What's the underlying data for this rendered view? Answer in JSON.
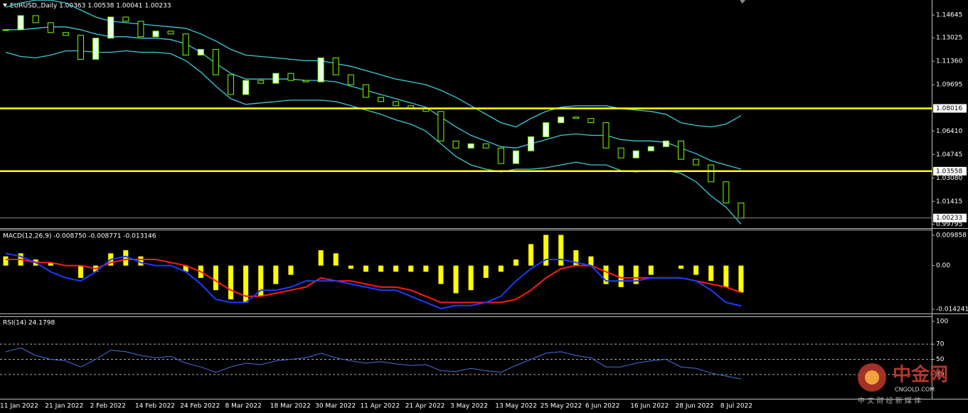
{
  "chart_data": [
    {
      "type": "candlestick",
      "title": "EURUSD,,Daily  1.00363 1.00538 1.00041 1.00233",
      "categories": [
        "11 Jan 2022",
        null,
        null,
        "21 Jan 2022",
        null,
        null,
        "2 Feb 2022",
        null,
        null,
        "14 Feb 2022",
        null,
        null,
        "24 Feb 2022",
        null,
        null,
        "8 Mar 2022",
        null,
        null,
        "18 Mar 2022",
        null,
        null,
        "30 Mar 2022",
        null,
        null,
        "11 Apr 2022",
        null,
        null,
        "21 Apr 2022",
        null,
        null,
        "3 May 2022",
        null,
        null,
        "13 May 2022",
        null,
        null,
        "25 May 2022",
        null,
        null,
        "6 Jun 2022",
        null,
        null,
        "16 Jun 2022",
        null,
        null,
        "28 Jun 2022",
        null,
        null,
        "8 Jul 2022",
        null
      ],
      "close": [
        1.136,
        1.146,
        1.141,
        1.134,
        1.132,
        1.115,
        1.13,
        1.145,
        1.142,
        1.131,
        1.135,
        1.133,
        1.118,
        1.122,
        1.104,
        1.09,
        1.1,
        1.098,
        1.105,
        1.1,
        1.099,
        1.116,
        1.104,
        1.097,
        1.088,
        1.085,
        1.082,
        1.08,
        1.078,
        1.057,
        1.052,
        1.055,
        1.052,
        1.041,
        1.05,
        1.06,
        1.07,
        1.074,
        1.073,
        1.07,
        1.052,
        1.045,
        1.05,
        1.053,
        1.057,
        1.044,
        1.04,
        1.028,
        1.013,
        1.00233
      ],
      "bands": {
        "upper": [
          1.152,
          1.155,
          1.157,
          1.157,
          1.155,
          1.15,
          1.145,
          1.142,
          1.141,
          1.14,
          1.139,
          1.138,
          1.137,
          1.133,
          1.128,
          1.122,
          1.118,
          1.117,
          1.116,
          1.115,
          1.114,
          1.114,
          1.112,
          1.11,
          1.107,
          1.104,
          1.101,
          1.099,
          1.097,
          1.093,
          1.088,
          1.082,
          1.076,
          1.07,
          1.067,
          1.073,
          1.078,
          1.081,
          1.082,
          1.082,
          1.082,
          1.08,
          1.079,
          1.078,
          1.076,
          1.07,
          1.068,
          1.067,
          1.069,
          1.075
        ],
        "middle": [
          1.136,
          1.136,
          1.137,
          1.138,
          1.138,
          1.136,
          1.133,
          1.131,
          1.131,
          1.13,
          1.13,
          1.129,
          1.126,
          1.12,
          1.112,
          1.105,
          1.101,
          1.101,
          1.101,
          1.101,
          1.1,
          1.1,
          1.099,
          1.096,
          1.093,
          1.09,
          1.087,
          1.084,
          1.081,
          1.074,
          1.067,
          1.061,
          1.057,
          1.053,
          1.052,
          1.055,
          1.058,
          1.061,
          1.062,
          1.061,
          1.061,
          1.058,
          1.057,
          1.057,
          1.056,
          1.052,
          1.048,
          1.043,
          1.04,
          1.037
        ],
        "lower": [
          1.12,
          1.117,
          1.116,
          1.118,
          1.121,
          1.121,
          1.12,
          1.12,
          1.121,
          1.12,
          1.12,
          1.119,
          1.114,
          1.106,
          1.096,
          1.087,
          1.083,
          1.084,
          1.085,
          1.086,
          1.086,
          1.086,
          1.085,
          1.082,
          1.079,
          1.076,
          1.072,
          1.069,
          1.064,
          1.055,
          1.046,
          1.04,
          1.037,
          1.035,
          1.037,
          1.037,
          1.038,
          1.04,
          1.042,
          1.04,
          1.04,
          1.036,
          1.035,
          1.036,
          1.036,
          1.034,
          1.028,
          1.018,
          1.01,
          0.998
        ]
      },
      "band_color": "#3fc8d8",
      "candle_color": "#eaffea",
      "candle_edge": "#7cfc00",
      "levels": [
        1.08016,
        1.03558
      ],
      "level_color": "#ffff00",
      "ylim": [
        0.9951,
        1.1571
      ],
      "yticks": [
        1.14645,
        1.13025,
        {
          "value": 1.1136,
          "label": "1.11360"
        },
        1.09695,
        {
          "value": 1.0641,
          "label": "1.06410"
        },
        1.04745,
        {
          "value": 1.0308,
          "label": "1.03080"
        },
        1.01415,
        0.99795
      ]
    },
    {
      "type": "macd",
      "title": "MACD(12,26,9) -0.008750 -0.008771 -0.013146",
      "series": [
        {
          "color": "#ffff00",
          "values": [
            0.003,
            0.004,
            0.002,
            0.001,
            0.0,
            -0.004,
            -0.002,
            0.004,
            0.005,
            0.003,
            0.0,
            0.0,
            -0.002,
            -0.004,
            -0.008,
            -0.011,
            -0.012,
            -0.01,
            -0.006,
            -0.003,
            0.0,
            0.005,
            0.004,
            -0.001,
            -0.002,
            -0.002,
            -0.002,
            -0.002,
            -0.002,
            -0.006,
            -0.009,
            -0.008,
            -0.004,
            -0.002,
            0.002,
            0.007,
            0.01,
            0.01,
            0.005,
            0.003,
            -0.006,
            -0.007,
            -0.006,
            -0.003,
            0.0,
            -0.001,
            -0.003,
            -0.005,
            -0.007,
            -0.00875
          ]
        },
        {
          "color": "#ff1a1a",
          "values": [
            0.002,
            0.002,
            0.001,
            0.001,
            0.0,
            0.0,
            -0.001,
            0.001,
            0.002,
            0.002,
            0.002,
            0.001,
            0.0,
            -0.002,
            -0.005,
            -0.008,
            -0.01,
            -0.01,
            -0.009,
            -0.008,
            -0.007,
            -0.004,
            -0.005,
            -0.005,
            -0.006,
            -0.007,
            -0.007,
            -0.008,
            -0.01,
            -0.012,
            -0.012,
            -0.012,
            -0.012,
            -0.012,
            -0.011,
            -0.008,
            -0.004,
            -0.001,
            0.0,
            0.0,
            -0.002,
            -0.004,
            -0.004,
            -0.004,
            -0.004,
            -0.004,
            -0.005,
            -0.006,
            -0.007,
            -0.008771
          ]
        },
        {
          "color": "#1a3cff",
          "values": [
            0.004,
            0.003,
            0.001,
            -0.002,
            -0.004,
            -0.005,
            -0.002,
            0.002,
            0.003,
            0.001,
            0.0,
            0.0,
            -0.002,
            -0.006,
            -0.011,
            -0.012,
            -0.012,
            -0.008,
            -0.008,
            -0.007,
            -0.005,
            -0.005,
            -0.005,
            -0.006,
            -0.007,
            -0.008,
            -0.008,
            -0.01,
            -0.012,
            -0.014,
            -0.013,
            -0.013,
            -0.012,
            -0.01,
            -0.005,
            -0.001,
            0.002,
            0.002,
            0.001,
            0.0,
            -0.005,
            -0.005,
            -0.005,
            -0.004,
            -0.004,
            -0.004,
            -0.005,
            -0.008,
            -0.012,
            -0.013146
          ]
        }
      ],
      "ylim": [
        -0.0156,
        0.0115
      ],
      "yticks": [
        0.009858,
        {
          "value": 0,
          "label": "0.00"
        },
        -0.014241
      ]
    },
    {
      "type": "line",
      "title": "RSI(14) 24.1798",
      "color": "#4a6ee0",
      "values": [
        60,
        65,
        55,
        50,
        48,
        40,
        50,
        62,
        60,
        55,
        52,
        54,
        45,
        40,
        33,
        40,
        45,
        43,
        48,
        50,
        52,
        58,
        52,
        48,
        45,
        47,
        44,
        42,
        43,
        35,
        34,
        38,
        35,
        33,
        42,
        50,
        58,
        60,
        55,
        52,
        40,
        40,
        45,
        48,
        50,
        40,
        38,
        32,
        28,
        24.1798
      ],
      "levels": [
        70,
        50,
        30
      ],
      "ylim": [
        0,
        100
      ],
      "yticks": [
        100,
        70,
        50,
        30
      ]
    }
  ],
  "watermark": {
    "name": "中金网",
    "site": "CNGOLD.COM",
    "slogan": "中 文 财 经 新 媒 体"
  }
}
